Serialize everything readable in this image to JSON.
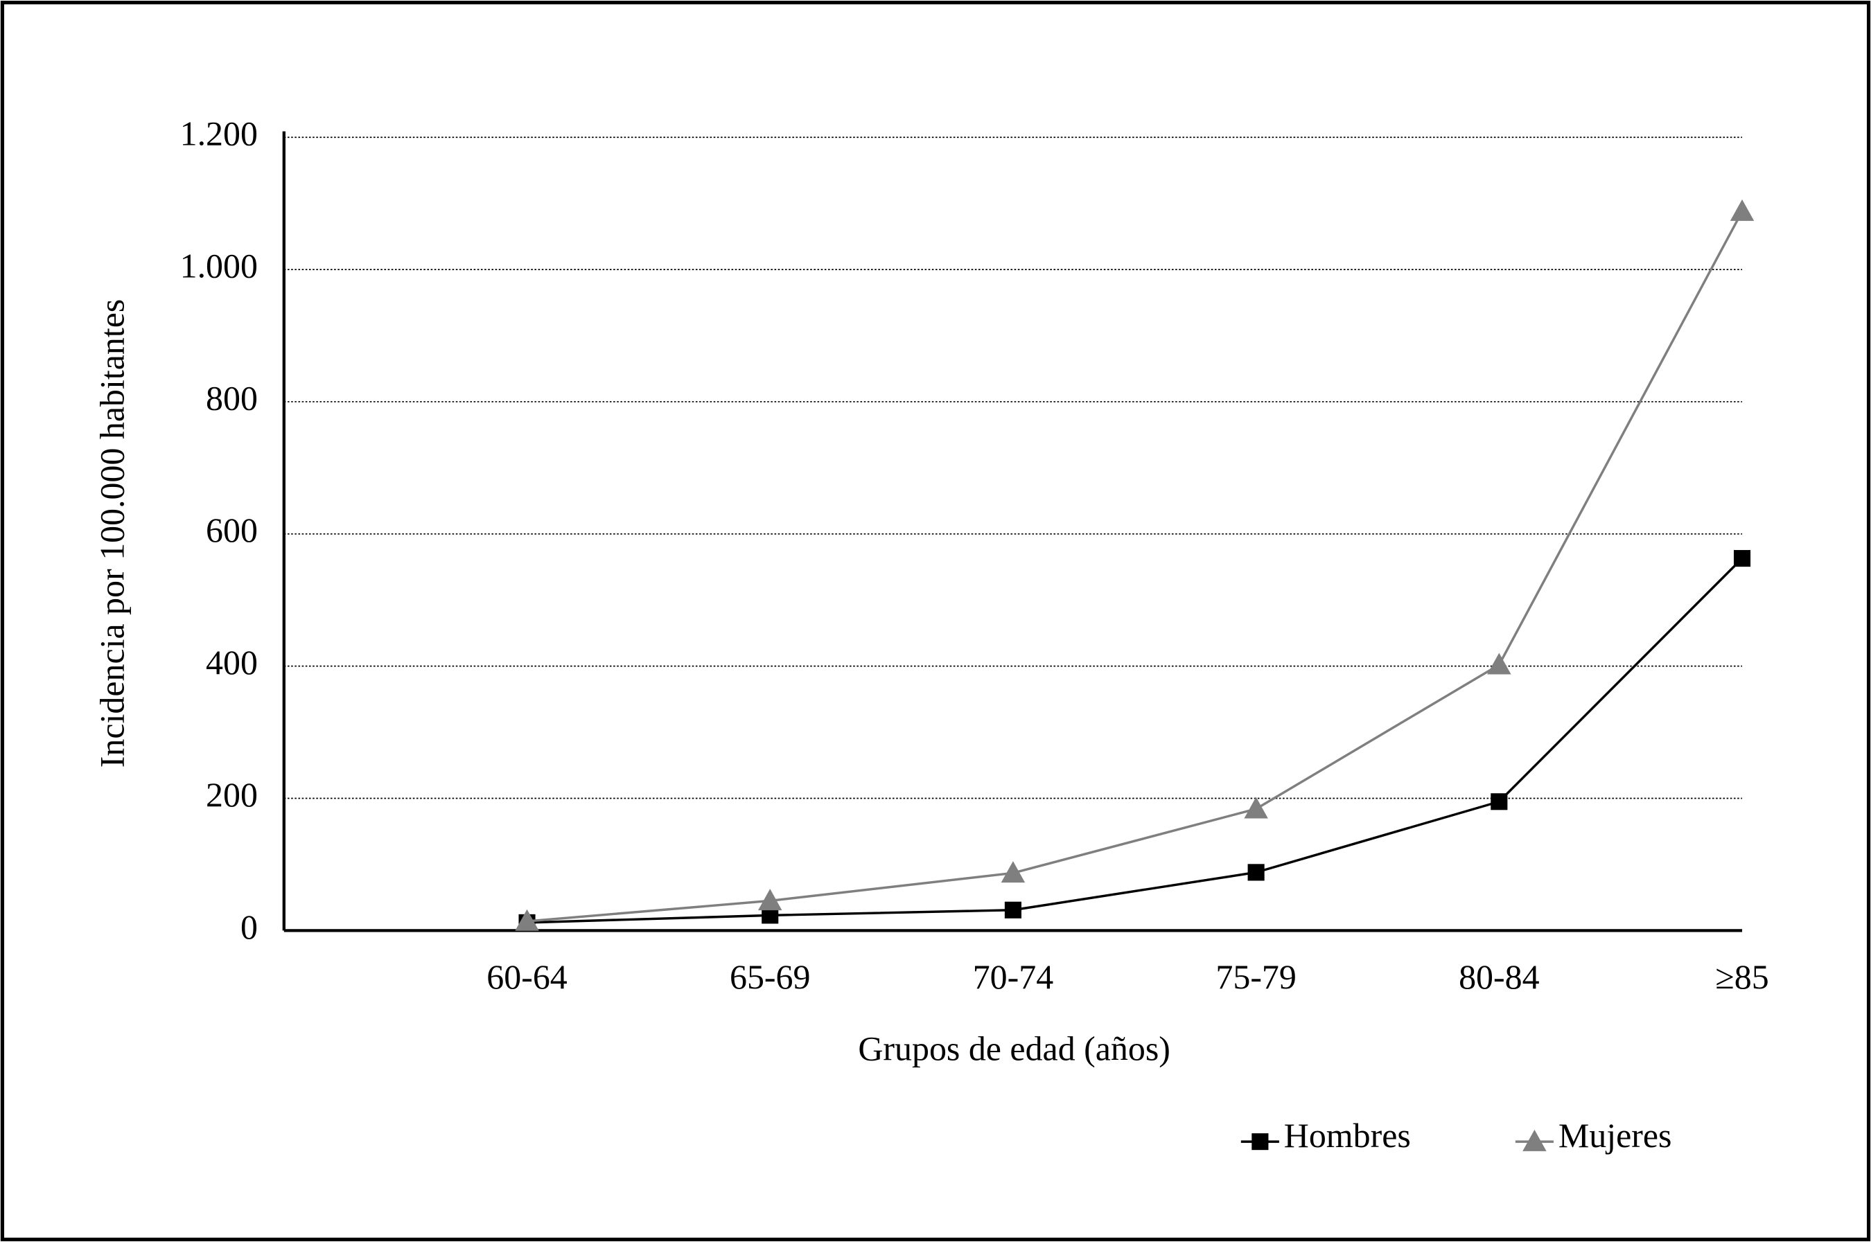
{
  "chart_data": {
    "type": "line",
    "x_label": "Grupos de edad (años)",
    "y_label": "Incidencia por 100.000 habitantes",
    "categories": [
      "60-64",
      "65-69",
      "70-74",
      "75-79",
      "80-84",
      "≥85"
    ],
    "series": [
      {
        "name": "Hombres",
        "color": "#000000",
        "marker": "square",
        "values": [
          12,
          23,
          31,
          88,
          195,
          563
        ]
      },
      {
        "name": "Mujeres",
        "color": "#7f7f7f",
        "marker": "triangle",
        "values": [
          14,
          45,
          87,
          184,
          402,
          1088
        ]
      }
    ],
    "ylim": [
      0,
      1200
    ],
    "yticks": [
      0,
      200,
      400,
      600,
      800,
      {
        "value": 1000,
        "label": "1.000"
      },
      {
        "value": 1200,
        "label": "1.200"
      }
    ],
    "grid": true,
    "legend": "bottom-right"
  }
}
